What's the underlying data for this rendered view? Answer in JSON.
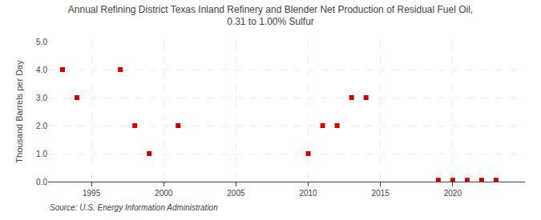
{
  "chart_data": {
    "type": "scatter",
    "title": "Annual Refining District Texas Inland Refinery and Blender Net Production of Residual Fuel Oil,\n0.31 to 1.00% Sulfur",
    "y_label": "Thousand Barrels per Day",
    "annotations": [
      "Source: U.S. Energy Information Administration"
    ],
    "x": [
      1993,
      1994,
      1997,
      1998,
      1999,
      2001,
      2010,
      2011,
      2012,
      2013,
      2014,
      2019,
      2020,
      2021,
      2022,
      2023
    ],
    "values": [
      4.0,
      3.0,
      4.0,
      2.0,
      1.0,
      2.0,
      1.0,
      2.0,
      2.0,
      3.0,
      3.0,
      0.05,
      0.05,
      0.05,
      0.05,
      0.05
    ],
    "color": "#cc0000",
    "marker": "square",
    "xlim": [
      1992,
      2025
    ],
    "xticks": [
      1995,
      2000,
      2005,
      2010,
      2015,
      2020
    ],
    "ylim": [
      0.0,
      5.0
    ],
    "yticks": [
      {
        "value": 0.0,
        "label": "0.0"
      },
      {
        "value": 1.0,
        "label": "1.0"
      },
      {
        "value": 2.0,
        "label": "2.0"
      },
      {
        "value": 3.0,
        "label": "3.0"
      },
      {
        "value": 4.0,
        "label": "4.0"
      },
      {
        "value": 5.0,
        "label": "5.0"
      }
    ],
    "grid": true
  }
}
